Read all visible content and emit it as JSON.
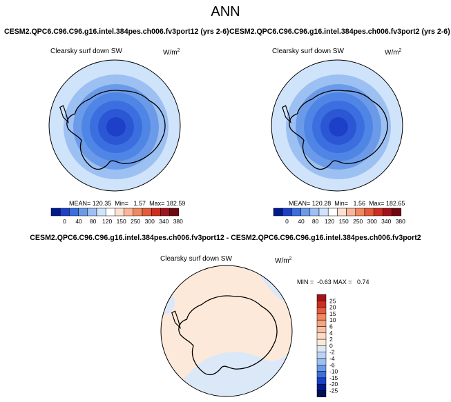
{
  "main_title": "ANN",
  "panels": [
    {
      "title": "CESM2.QPC6.C96.C96.g16.intel.384pes.ch006.fv3port12 (yrs 2-6)",
      "variable": "Clearsky surf down SW",
      "units": "W/m",
      "units_exp": "2",
      "stats": "MEAN= 120.35  Min=   1.57  Max= 182.59"
    },
    {
      "title": "CESM2.QPC6.C96.C96.g16.intel.384pes.ch006.fv3port2 (yrs 2-6)",
      "variable": "Clearsky surf down SW",
      "units": "W/m",
      "units_exp": "2",
      "stats": "MEAN= 120.28  Min=   1.56  Max= 182.65"
    }
  ],
  "diff_panel": {
    "title": "CESM2.QPC6.C96.C96.g16.intel.384pes.ch006.fv3port12 - CESM2.QPC6.C96.C96.g16.intel.384pes.ch006.fv3port2",
    "variable": "Clearsky surf down SW",
    "units": "W/m",
    "units_exp": "2",
    "stats": "MIN =  -0.63 MAX =   0.74"
  },
  "chart_data": [
    {
      "type": "heatmap",
      "projection": "south polar stereographic",
      "contour_levels": [
        0,
        40,
        80,
        120,
        150,
        250,
        300,
        340,
        380
      ],
      "colorbar_labels": [
        "0",
        "40",
        "80",
        "120",
        "150",
        "250",
        "300",
        "340",
        "380"
      ],
      "colorbar_colors": [
        "#001a8c",
        "#1e40c8",
        "#3b6fe0",
        "#6b9be8",
        "#9dc0f2",
        "#cfe3fa",
        "#ffffff",
        "#fde0cf",
        "#f9b69a",
        "#f08860",
        "#e35a3c",
        "#cc2e22",
        "#a3141a",
        "#6f0810"
      ],
      "rings": [
        {
          "label": "outer (~55S)",
          "color": "#cfe3fa"
        },
        {
          "color": "#9dc0f2"
        },
        {
          "color": "#6b9be8"
        },
        {
          "color": "#4f86e6"
        },
        {
          "color": "#3b6fe0"
        },
        {
          "color": "#2b57d4"
        },
        {
          "label": "pole",
          "color": "#1e40c8"
        }
      ],
      "mean": 120.35,
      "min": 1.57,
      "max": 182.59
    },
    {
      "type": "heatmap",
      "projection": "south polar stereographic",
      "contour_levels": [
        0,
        40,
        80,
        120,
        150,
        250,
        300,
        340,
        380
      ],
      "mean": 120.28,
      "min": 1.56,
      "max": 182.65
    },
    {
      "type": "heatmap",
      "projection": "south polar stereographic",
      "contour_levels": [
        -25,
        -20,
        -15,
        -10,
        -6,
        -4,
        -2,
        0,
        2,
        4,
        6,
        10,
        15,
        20,
        25
      ],
      "colorbar_labels": [
        "25",
        "20",
        "15",
        "10",
        "6",
        "4",
        "2",
        "0",
        "-2",
        "-4",
        "-6",
        "-10",
        "-15",
        "-20",
        "-25"
      ],
      "colorbar_colors": [
        "#a3141a",
        "#cc2e22",
        "#e35a3c",
        "#f08860",
        "#f6a47e",
        "#f9c0a4",
        "#fcdcc8",
        "#fde9d9",
        "#dbe8f8",
        "#bcd4f4",
        "#9dc0f2",
        "#6b9be8",
        "#3b6fe0",
        "#1e40c8",
        "#001a8c",
        "#000f5c"
      ],
      "dominant_fill": "#fde9d9",
      "secondary_fill": "#dbe8f8",
      "min": -0.63,
      "max": 0.74
    }
  ]
}
